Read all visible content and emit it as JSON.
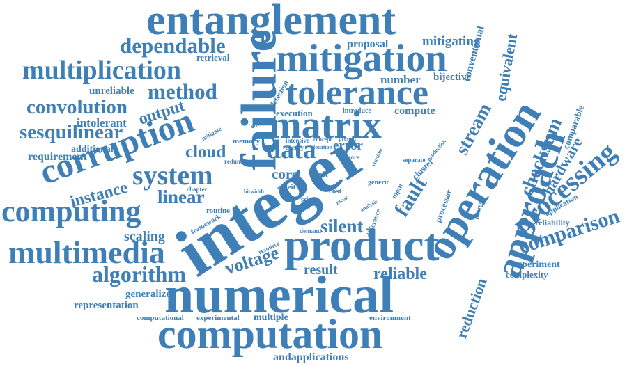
{
  "color": "#3f7fb7",
  "words": {
    "entanglement": "entanglement",
    "dependable": "dependable",
    "mitigation": "mitigation",
    "multiplication": "multiplication",
    "retrieval": "retrieval",
    "failure": "failure",
    "tolerance": "tolerance",
    "method": "method",
    "unreliable": "unreliable",
    "convolution": "convolution",
    "corruption": "corruption",
    "output": "output",
    "intolerant": "intolerant",
    "matrix": "matrix",
    "sesquilinear": "sesquilinear",
    "cloud": "cloud",
    "data": "data",
    "error": "error",
    "system": "system",
    "core": "core",
    "integer": "integer",
    "instance": "instance",
    "linear": "linear",
    "computing": "computing",
    "fault": "fault",
    "operation": "operation",
    "approach": "approach",
    "product": "product",
    "silent": "silent",
    "multimedia": "multimedia",
    "scaling": "scaling",
    "voltage": "voltage",
    "algorithm": "algorithm",
    "numerical": "numerical",
    "result": "result",
    "reliable": "reliable",
    "computation": "computation",
    "comparison": "comparison",
    "processing": "processing",
    "checksum": "checksum",
    "hardware": "hardware",
    "stream": "stream",
    "proposal": "proposal",
    "mitigating": "mitigating",
    "number": "number",
    "bijective": "bijective",
    "conventional": "conventional",
    "equivalent": "equivalent",
    "execution": "execution",
    "compute": "compute",
    "introduce": "introduce",
    "additional": "additional",
    "requirement": "requirement",
    "generalized": "generalized",
    "representation": "representation",
    "computational": "computational",
    "experimental": "experimental",
    "multiple": "multiple",
    "environment": "environment",
    "andapplications": "andapplications",
    "reduction": "reduction",
    "experiment": "experiment",
    "complexity": "complexity",
    "reliability": "reliability",
    "application": "application",
    "comparable": "comparable",
    "processor": "processor",
    "tolerant": "tolerant",
    "cluster": "cluster",
    "generic": "generic",
    "input": "input",
    "sdcs": "sdcs",
    "cost": "cost",
    "albeit": "albeit",
    "soft": "soft",
    "chapter": "chapter",
    "routine": "routine",
    "framework": "framework",
    "resource": "resource",
    "demand": "demand",
    "difference": "difference",
    "memory": "memory",
    "redundant": "redundant",
    "bitwidth": "bitwidth",
    "mitigate": "mitigate",
    "energy": "energy",
    "intensive": "intensive",
    "location": "location",
    "detection": "detection",
    "efficient": "efficient",
    "concept": "concept",
    "present": "present",
    "more": "more",
    "separate": "separate",
    "production": "production",
    "runtime": "runtime",
    "analysis": "analysis",
    "conv": "conv",
    "incur": "incur"
  }
}
